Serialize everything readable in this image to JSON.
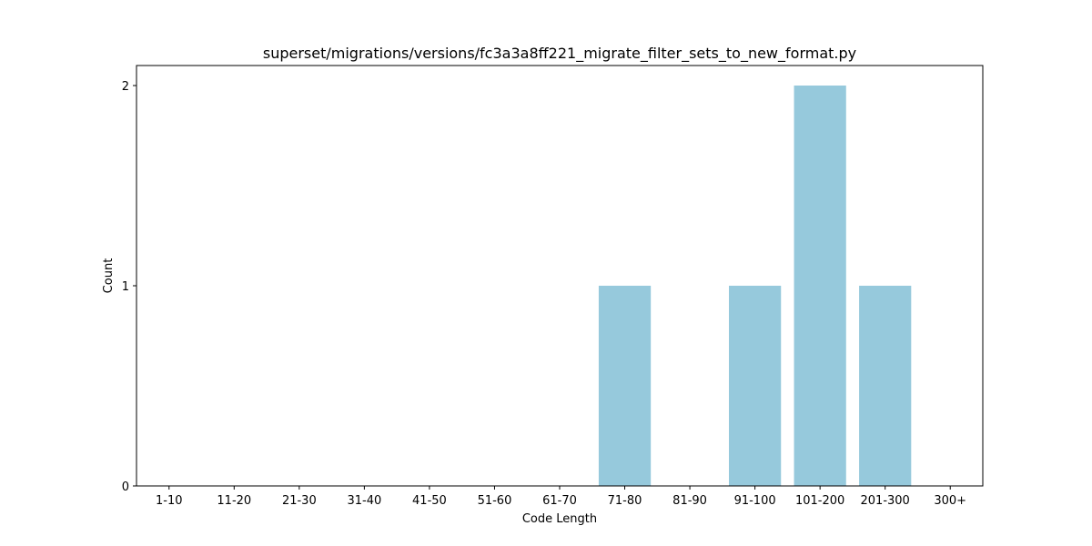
{
  "chart_data": {
    "type": "bar",
    "title": "superset/migrations/versions/fc3a3a8ff221_migrate_filter_sets_to_new_format.py",
    "xlabel": "Code Length",
    "ylabel": "Count",
    "categories": [
      "1-10",
      "11-20",
      "21-30",
      "31-40",
      "41-50",
      "51-60",
      "61-70",
      "71-80",
      "81-90",
      "91-100",
      "101-200",
      "201-300",
      "300+"
    ],
    "values": [
      0,
      0,
      0,
      0,
      0,
      0,
      0,
      1,
      0,
      1,
      2,
      1,
      0
    ],
    "yticks": [
      0,
      1,
      2
    ],
    "ylim": [
      0,
      2.1
    ],
    "bar_color": "#96c9dc",
    "grid": false,
    "legend": false
  }
}
